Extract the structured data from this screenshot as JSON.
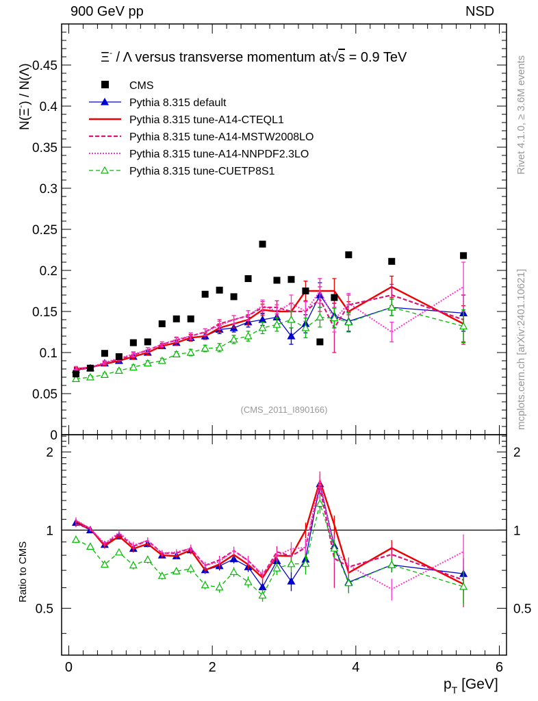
{
  "header": {
    "left": "900 GeV pp",
    "right": "NSD"
  },
  "side_labels": {
    "rivet": "Rivet 4.1.0, ≥ 3.6M events",
    "mcplots": "mcplots.cern.ch [arXiv:2401.10621]"
  },
  "chart_data": {
    "type": "scatter",
    "title": "Ξ⁻ / Λ versus transverse momentum at √s = 0.9 TeV",
    "title_parts": {
      "xi": "Ξ",
      "minus": "-",
      "text1": " / Λ versus transverse momentum at",
      "sqrt": "√",
      "s": "s",
      "text2": " = 0.9 TeV"
    },
    "ylabel": "N(Ξ⁻) / N(Λ)",
    "ylabel_parts": {
      "a": "N(Ξ",
      "sup": "-",
      "b": ")  /  N(Λ)"
    },
    "ratio_ylabel": "Ratio to CMS",
    "xlabel": "p_T [GeV]",
    "xlabel_parts": {
      "p": "p",
      "sub": "T",
      "unit": " [GeV]"
    },
    "watermark": "(CMS_2011_I890166)",
    "xlim": [
      -0.1,
      6.1
    ],
    "ylim": [
      0,
      0.5
    ],
    "ratio_ylim": [
      0.33,
      2.33
    ],
    "x_ticks": [
      "0",
      "2",
      "4",
      "6"
    ],
    "y_ticks": [
      "0",
      "0.05",
      "0.1",
      "0.15",
      "0.2",
      "0.25",
      "0.3",
      "0.35",
      "0.4",
      "0.45"
    ],
    "ratio_ticks": [
      "0.5",
      "1",
      "2"
    ],
    "legend": [
      "CMS",
      "Pythia 8.315 default",
      "Pythia 8.315 tune-A14-CTEQL1",
      "Pythia 8.315 tune-A14-MSTW2008LO",
      "Pythia 8.315 tune-A14-NNPDF2.3LO",
      "Pythia 8.315 tune-CUETP8S1"
    ],
    "x": [
      0.1,
      0.3,
      0.5,
      0.7,
      0.9,
      1.1,
      1.3,
      1.5,
      1.7,
      1.9,
      2.1,
      2.3,
      2.5,
      2.7,
      2.9,
      3.1,
      3.3,
      3.5,
      3.7,
      3.9,
      4.5,
      5.5
    ],
    "data": [
      0.074,
      0.081,
      0.099,
      0.095,
      0.112,
      0.113,
      0.135,
      0.141,
      0.141,
      0.171,
      0.176,
      0.168,
      0.19,
      0.232,
      0.188,
      0.189,
      0.175,
      0.113,
      0.167,
      0.219,
      0.211,
      0.218
    ],
    "series": [
      {
        "name": "Pythia 8.315 default",
        "color": "#0000cc",
        "values": [
          0.079,
          0.081,
          0.087,
          0.09,
          0.095,
          0.1,
          0.108,
          0.112,
          0.118,
          0.12,
          0.128,
          0.13,
          0.137,
          0.14,
          0.143,
          0.12,
          0.135,
          0.17,
          0.145,
          0.138,
          0.155,
          0.148
        ],
        "errors": [
          0.002,
          0.002,
          0.002,
          0.002,
          0.003,
          0.003,
          0.003,
          0.003,
          0.004,
          0.004,
          0.005,
          0.005,
          0.006,
          0.007,
          0.008,
          0.01,
          0.011,
          0.015,
          0.015,
          0.012,
          0.01,
          0.022
        ]
      },
      {
        "name": "Pythia 8.315 tune-A14-CTEQL1",
        "color": "#ee0000",
        "values": [
          0.08,
          0.082,
          0.086,
          0.09,
          0.095,
          0.1,
          0.108,
          0.112,
          0.118,
          0.12,
          0.13,
          0.135,
          0.14,
          0.152,
          0.15,
          0.15,
          0.175,
          0.175,
          0.175,
          0.15,
          0.18,
          0.135
        ],
        "errors": [
          0.002,
          0.002,
          0.002,
          0.002,
          0.003,
          0.003,
          0.003,
          0.003,
          0.004,
          0.004,
          0.005,
          0.005,
          0.006,
          0.007,
          0.008,
          0.01,
          0.012,
          0.015,
          0.015,
          0.012,
          0.013,
          0.022
        ]
      },
      {
        "name": "Pythia 8.315 tune-A14-MSTW2008LO",
        "color": "#dd1177",
        "values": [
          0.078,
          0.082,
          0.087,
          0.092,
          0.097,
          0.103,
          0.11,
          0.115,
          0.12,
          0.125,
          0.135,
          0.14,
          0.145,
          0.155,
          0.155,
          0.15,
          0.15,
          0.165,
          0.13,
          0.158,
          0.17,
          0.14
        ],
        "errors": [
          0.002,
          0.002,
          0.002,
          0.002,
          0.003,
          0.003,
          0.003,
          0.003,
          0.004,
          0.004,
          0.005,
          0.005,
          0.006,
          0.007,
          0.008,
          0.01,
          0.012,
          0.015,
          0.03,
          0.012,
          0.013,
          0.03
        ]
      },
      {
        "name": "Pythia 8.315 tune-A14-NNPDF2.3LO",
        "color": "#ff33cc",
        "values": [
          0.081,
          0.082,
          0.088,
          0.093,
          0.098,
          0.103,
          0.11,
          0.116,
          0.12,
          0.125,
          0.133,
          0.14,
          0.145,
          0.157,
          0.15,
          0.16,
          0.15,
          0.175,
          0.14,
          0.16,
          0.125,
          0.18
        ],
        "errors": [
          0.002,
          0.002,
          0.002,
          0.002,
          0.003,
          0.003,
          0.003,
          0.003,
          0.004,
          0.004,
          0.005,
          0.005,
          0.006,
          0.007,
          0.008,
          0.01,
          0.012,
          0.015,
          0.015,
          0.012,
          0.012,
          0.03
        ]
      },
      {
        "name": "Pythia 8.315 tune-CUETP8S1",
        "color": "#00bb00",
        "values": [
          0.068,
          0.07,
          0.073,
          0.078,
          0.082,
          0.087,
          0.09,
          0.098,
          0.1,
          0.105,
          0.106,
          0.116,
          0.12,
          0.13,
          0.134,
          0.14,
          0.13,
          0.143,
          0.142,
          0.137,
          0.155,
          0.132
        ],
        "errors": [
          0.002,
          0.002,
          0.002,
          0.002,
          0.003,
          0.003,
          0.003,
          0.003,
          0.004,
          0.004,
          0.005,
          0.005,
          0.006,
          0.007,
          0.008,
          0.01,
          0.012,
          0.012,
          0.012,
          0.012,
          0.01,
          0.02
        ]
      }
    ]
  }
}
